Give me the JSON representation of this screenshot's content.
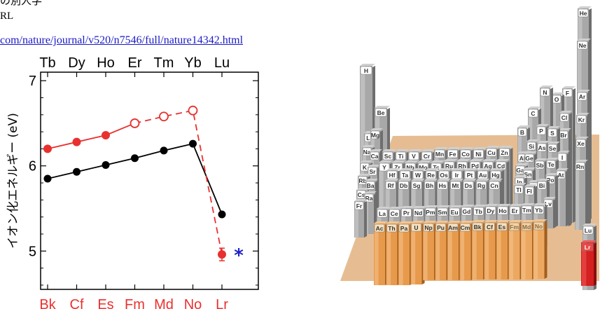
{
  "header": {
    "line1": "の別人学",
    "line2": "RL",
    "url": "com/nature/journal/v520/n7546/full/nature14342.html"
  },
  "chart_data": {
    "type": "line",
    "ylabel": "イオン化エネルギー (eV)",
    "ylim": [
      4.55,
      7.1
    ],
    "yticks": [
      5,
      6,
      7
    ],
    "top_labels": [
      "Tb",
      "Dy",
      "Ho",
      "Er",
      "Tm",
      "Yb",
      "Lu"
    ],
    "categories": [
      "Bk",
      "Cf",
      "Es",
      "Fm",
      "Md",
      "No",
      "Lr"
    ],
    "series": [
      {
        "name": "",
        "color": "#000000",
        "style": "solid",
        "values": [
          5.85,
          5.93,
          6.01,
          6.09,
          6.18,
          6.26,
          5.43
        ]
      },
      {
        "name": "",
        "color": "#e8312f",
        "style": "mixed",
        "values": [
          6.2,
          6.28,
          6.36,
          6.5,
          6.58,
          6.65,
          4.96
        ],
        "open_markers": [
          3,
          4,
          5
        ],
        "error_bar_index": 6
      }
    ],
    "asterisk": {
      "x_index": 6,
      "y": 4.96,
      "color": "#1e22c8"
    }
  },
  "periodic_figure": {
    "elements": [
      "He",
      "H",
      "Ne",
      "Be",
      "F",
      "Ar",
      "N",
      "O",
      "Li",
      "Mg",
      "C",
      "Cl",
      "Kr",
      "Na",
      "Ca",
      "Sc",
      "Ti",
      "V",
      "Cr",
      "Mn",
      "Fe",
      "Co",
      "Ni",
      "Cu",
      "Zn",
      "B",
      "P",
      "S",
      "Br",
      "Xe",
      "K",
      "Sr",
      "Y",
      "Zr",
      "Nb",
      "Mo",
      "Tc",
      "Ru",
      "Rh",
      "Pd",
      "Ag",
      "Cd",
      "Al",
      "Si",
      "As",
      "Se",
      "I",
      "Rn",
      "Rb",
      "Ba",
      "Hf",
      "Ta",
      "W",
      "Re",
      "Os",
      "Ir",
      "Pt",
      "Au",
      "Hg",
      "Ga",
      "Ge",
      "Sb",
      "Te",
      "At",
      "Cs",
      "Ra",
      "Rf",
      "Db",
      "Sg",
      "Bh",
      "Hs",
      "Mt",
      "Ds",
      "Rg",
      "Cn",
      "In",
      "Sn",
      "Tl",
      "Pb",
      "Bi",
      "Po",
      "Fr",
      "Lv",
      "La",
      "Ce",
      "Pr",
      "Nd",
      "Pm",
      "Sm",
      "Eu",
      "Gd",
      "Tb",
      "Dy",
      "Ho",
      "Er",
      "Tm",
      "Yb",
      "Lu",
      "Ac",
      "Th",
      "Pa",
      "U",
      "Np",
      "Pu",
      "Am",
      "Cm",
      "Bk",
      "Cf",
      "Es",
      "Fm",
      "Md",
      "No",
      "Lr",
      "Fl"
    ],
    "colors": {
      "highlight": "#d42020",
      "actinide": "#e79a4c",
      "plate": "#e6bd92",
      "pillar": "#9a9a9a"
    }
  }
}
